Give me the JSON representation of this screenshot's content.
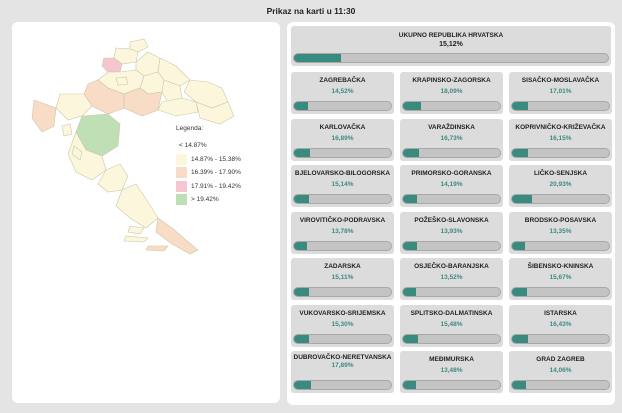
{
  "header": {
    "title": "Prikaz na karti u 11:30"
  },
  "legend": {
    "title": "Legenda:",
    "items": [
      {
        "label": "< 14.87%",
        "color": ""
      },
      {
        "label": "14.87% - 15.38%",
        "color": "#fcf7dc"
      },
      {
        "label": "16.39% - 17.90%",
        "color": "#f9dcc6"
      },
      {
        "label": "17.91% - 19.42%",
        "color": "#f7c5cf"
      },
      {
        "label": "> 19.42%",
        "color": "#bfe0b4"
      }
    ]
  },
  "colors": {
    "bar_fill": "#3a8a80",
    "bar_track": "#c4c4c4",
    "card_bg": "#dcdcdc",
    "pct_text": "#3f8a82"
  },
  "total": {
    "name": "UKUPNO REPUBLIKA HRVATSKA",
    "percent": "15,12%",
    "value": 15.12
  },
  "regions": [
    {
      "name": "ZAGREBAČKA",
      "percent": "14,52%",
      "value": 14.52
    },
    {
      "name": "KRAPINSKO-ZAGORSKA",
      "percent": "18,09%",
      "value": 18.09
    },
    {
      "name": "SISAČKO-MOSLAVAČKA",
      "percent": "17,01%",
      "value": 17.01
    },
    {
      "name": "KARLOVAČKA",
      "percent": "16,89%",
      "value": 16.89
    },
    {
      "name": "VARAŽDINSKA",
      "percent": "16,73%",
      "value": 16.73
    },
    {
      "name": "KOPRIVNIČKO-KRIŽEVAČKA",
      "percent": "16,15%",
      "value": 16.15
    },
    {
      "name": "BJELOVARSKO-BILOGORSKA",
      "percent": "15,14%",
      "value": 15.14
    },
    {
      "name": "PRIMORSKO-GORANSKA",
      "percent": "14,19%",
      "value": 14.19
    },
    {
      "name": "LIČKO-SENJSKA",
      "percent": "20,93%",
      "value": 20.93
    },
    {
      "name": "VIROVITIČKO-PODRAVSKA",
      "percent": "13,78%",
      "value": 13.78
    },
    {
      "name": "POŽEŠKO-SLAVONSKA",
      "percent": "13,93%",
      "value": 13.93
    },
    {
      "name": "BRODSKO-POSAVSKA",
      "percent": "13,35%",
      "value": 13.35
    },
    {
      "name": "ZADARSKA",
      "percent": "15,11%",
      "value": 15.11
    },
    {
      "name": "OSJEČKO-BARANJSKA",
      "percent": "13,52%",
      "value": 13.52
    },
    {
      "name": "ŠIBENSKO-KNINSKA",
      "percent": "15,67%",
      "value": 15.67
    },
    {
      "name": "VUKOVARSKO-SRIJEMSKA",
      "percent": "15,30%",
      "value": 15.3
    },
    {
      "name": "SPLITSKO-DALMATINSKA",
      "percent": "15,48%",
      "value": 15.48
    },
    {
      "name": "ISTARSKA",
      "percent": "16,43%",
      "value": 16.43
    },
    {
      "name": "DUBROVAČKO-NERETVANSKA",
      "percent": "17,89%",
      "value": 17.89
    },
    {
      "name": "MEĐIMURSKA",
      "percent": "13,48%",
      "value": 13.48
    },
    {
      "name": "GRAD ZAGREB",
      "percent": "14,06%",
      "value": 14.06
    }
  ]
}
